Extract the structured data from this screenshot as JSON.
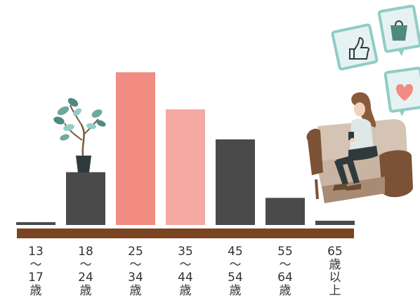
{
  "chart_data": {
    "type": "bar",
    "categories": [
      "13〜17歳",
      "18〜24歳",
      "25〜34歳",
      "35〜44歳",
      "45〜54歳",
      "55〜64歳",
      "65歳以上"
    ],
    "category_label_lines": [
      [
        "13",
        "〜",
        "17",
        "歳"
      ],
      [
        "18",
        "〜",
        "24",
        "歳"
      ],
      [
        "25",
        "〜",
        "34",
        "歳"
      ],
      [
        "35",
        "〜",
        "44",
        "歳"
      ],
      [
        "45",
        "〜",
        "54",
        "歳"
      ],
      [
        "55",
        "〜",
        "64",
        "歳"
      ],
      [
        "65",
        "歳",
        "以",
        "上"
      ]
    ],
    "values": [
      2,
      37,
      107,
      81,
      60,
      19,
      3
    ],
    "ylim": [
      0,
      110
    ],
    "grid": false,
    "legend": "none",
    "colors": [
      "#4a4a4a",
      "#4a4a4a",
      "#f28b82",
      "#f5a9a3",
      "#4a4a4a",
      "#4a4a4a",
      "#4a4a4a"
    ]
  },
  "colors": {
    "baseline": "#7a4420",
    "sofa": "#c9b4a3",
    "sofa_dark": "#7b5236",
    "teal": "#8fcdc6",
    "tile": "#e6f2f1"
  },
  "icons": [
    "thumbs-up-icon",
    "shopping-bag-icon",
    "heart-icon",
    "potted-plant-icon"
  ]
}
